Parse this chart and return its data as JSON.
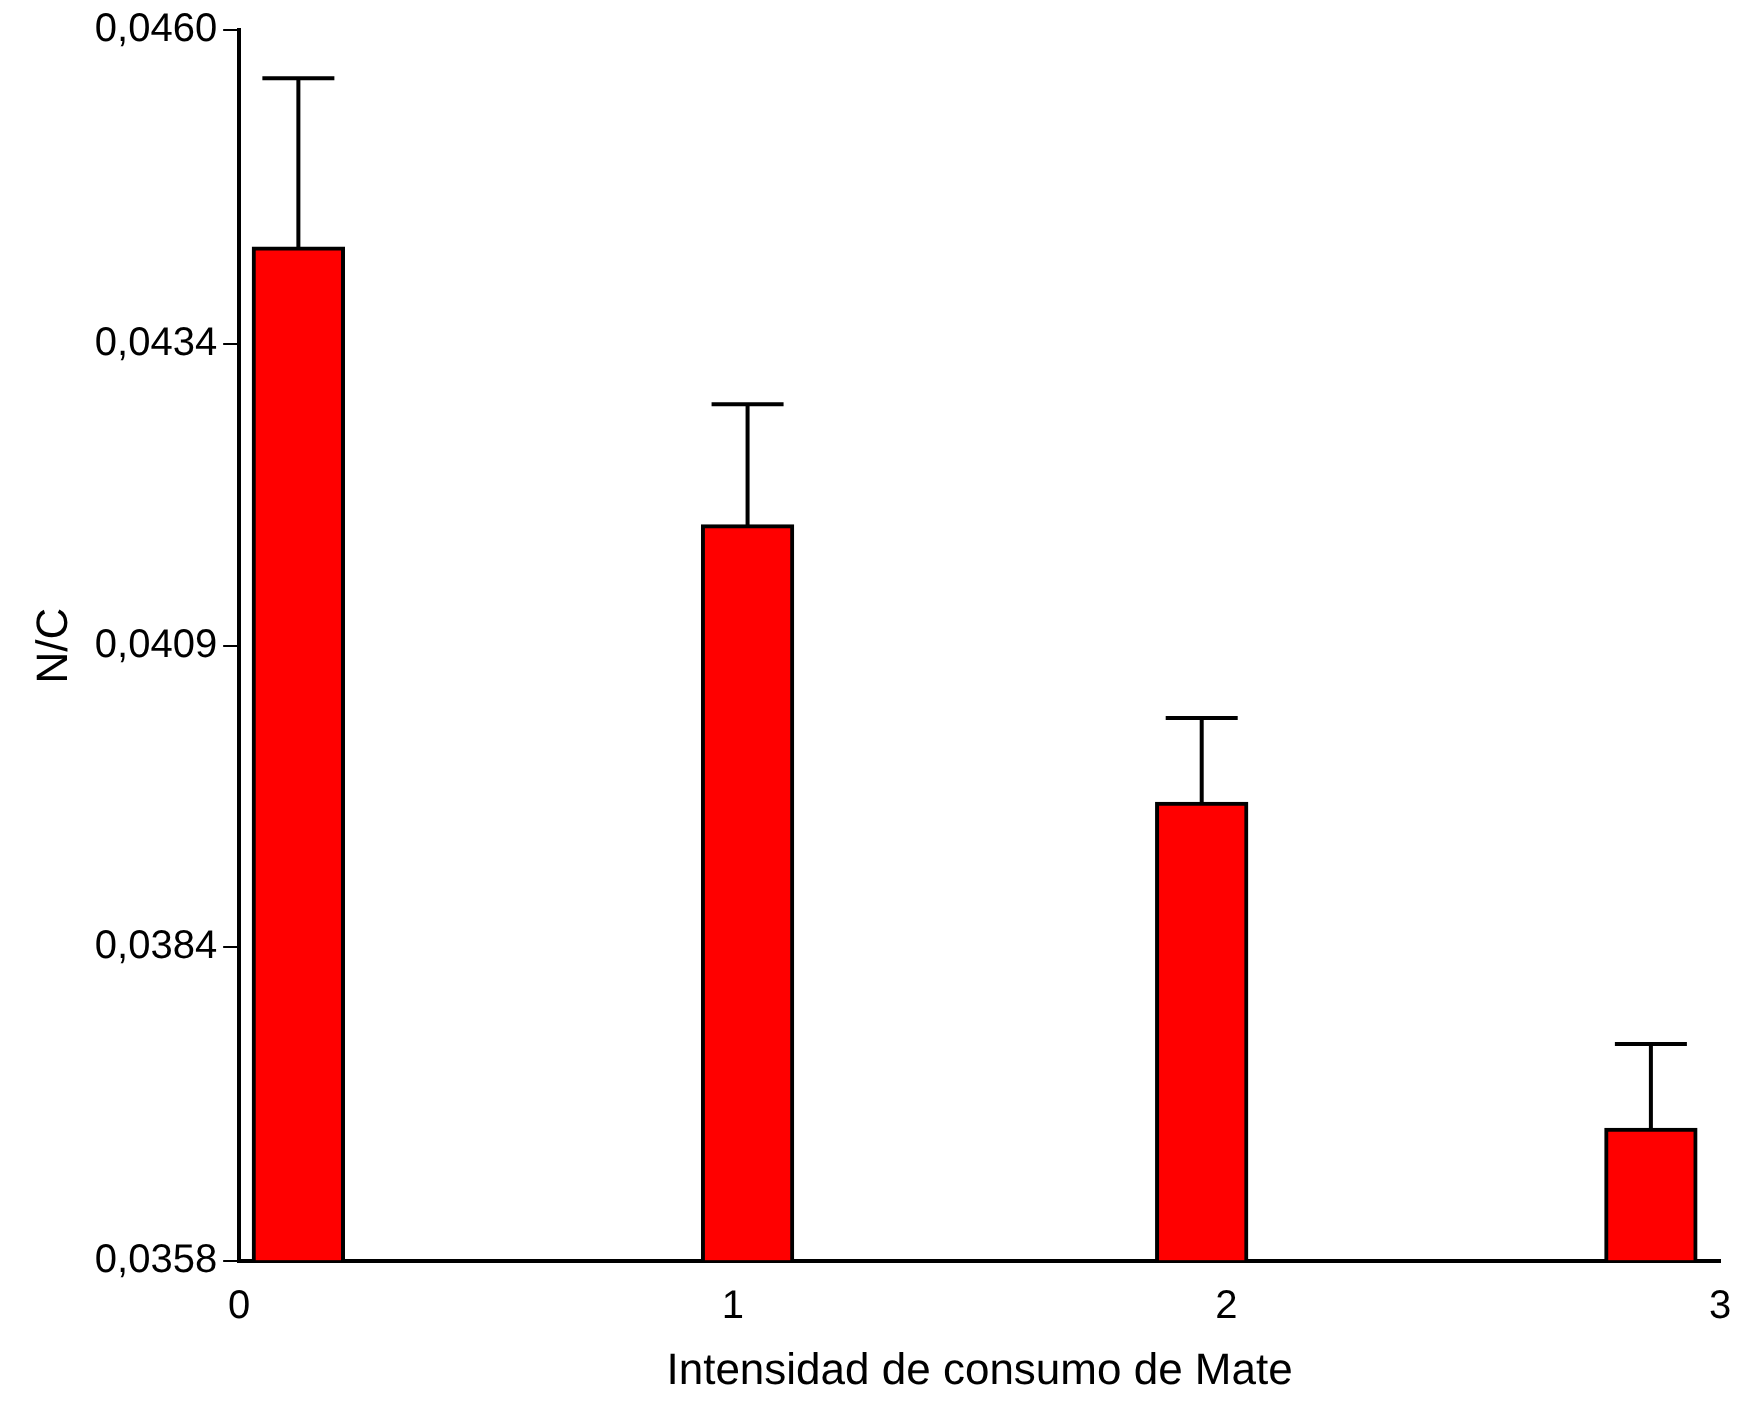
{
  "chart_data": {
    "type": "bar",
    "xlabel": "Intensidad de consumo de Mate",
    "ylabel": "N/C",
    "x": [
      0.12,
      1.03,
      1.95,
      2.86
    ],
    "values": [
      0.0442,
      0.0419,
      0.0396,
      0.0369
    ],
    "errors": [
      [
        0.0442,
        0.0456
      ],
      [
        0.0419,
        0.0429
      ],
      [
        0.0396,
        0.0403
      ],
      [
        0.0369,
        0.0376
      ]
    ],
    "color": "#ff0000",
    "xlim": [
      0,
      3
    ],
    "xticks": [
      0,
      1,
      2,
      3
    ],
    "ylim": [
      0.0358,
      0.046
    ],
    "yticks": [
      {
        "value": 0.0358,
        "label": "0,0358"
      },
      {
        "value": 0.0384,
        "label": "0,0384"
      },
      {
        "value": 0.0409,
        "label": "0,0409"
      },
      {
        "value": 0.0434,
        "label": "0,0434"
      },
      {
        "value": 0.046,
        "label": "0,0460"
      }
    ],
    "grid": false,
    "legend": false
  }
}
